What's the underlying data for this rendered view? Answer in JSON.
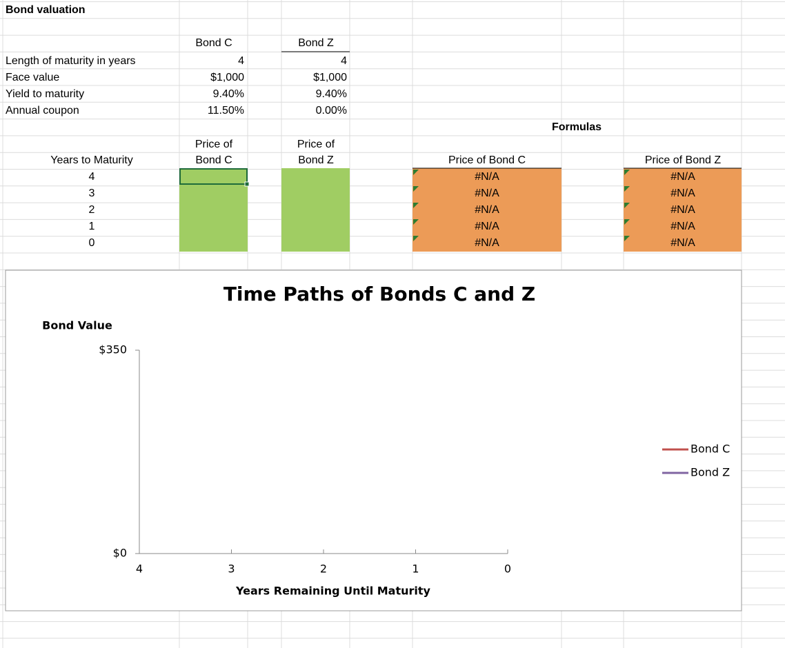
{
  "sheet": {
    "title": "Bond valuation",
    "inputs": {
      "columns": [
        "Bond C",
        "Bond Z"
      ],
      "rows": [
        {
          "label": "Length of maturity in years",
          "values": [
            "4",
            "4"
          ]
        },
        {
          "label": "Face value",
          "values": [
            "$1,000",
            "$1,000"
          ]
        },
        {
          "label": "Yield to maturity",
          "values": [
            "9.40%",
            "9.40%"
          ]
        },
        {
          "label": "Annual coupon",
          "values": [
            "11.50%",
            "0.00%"
          ]
        }
      ]
    },
    "schedule": {
      "years_header": "Years to Maturity",
      "price_headers": [
        [
          "Price of",
          "Bond C"
        ],
        [
          "Price of",
          "Bond Z"
        ]
      ],
      "years": [
        4,
        3,
        2,
        1,
        0
      ]
    },
    "formulas": {
      "label": "Formulas",
      "columns": [
        {
          "header": "Price of Bond C",
          "cells": [
            "#N/A",
            "#N/A",
            "#N/A",
            "#N/A",
            "#N/A"
          ]
        },
        {
          "header": "Price of Bond Z",
          "cells": [
            "#N/A",
            "#N/A",
            "#N/A",
            "#N/A",
            "#N/A"
          ]
        }
      ]
    }
  },
  "chart": {
    "type": "line",
    "title": "Time Paths of Bonds C and Z",
    "y_label": "Bond Value",
    "x_label": "Years Remaining Until Maturity",
    "ylim": [
      0,
      350
    ],
    "yticks": [
      {
        "value": 0,
        "label": "$0"
      },
      {
        "value": 350,
        "label": "$350"
      }
    ],
    "xlim": [
      4,
      0
    ],
    "xticks": [
      4,
      3,
      2,
      1,
      0
    ],
    "series": [
      {
        "name": "Bond C",
        "color": "#c0504d"
      },
      {
        "name": "Bond Z",
        "color": "#8064a2"
      }
    ]
  }
}
